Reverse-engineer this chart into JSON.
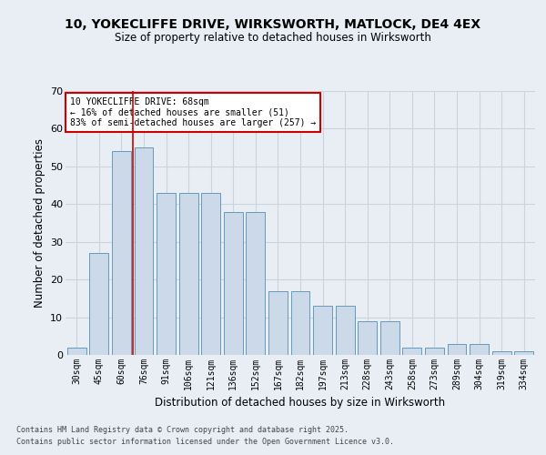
{
  "title_line1": "10, YOKECLIFFE DRIVE, WIRKSWORTH, MATLOCK, DE4 4EX",
  "title_line2": "Size of property relative to detached houses in Wirksworth",
  "xlabel": "Distribution of detached houses by size in Wirksworth",
  "ylabel": "Number of detached properties",
  "categories": [
    "30sqm",
    "45sqm",
    "60sqm",
    "76sqm",
    "91sqm",
    "106sqm",
    "121sqm",
    "136sqm",
    "152sqm",
    "167sqm",
    "182sqm",
    "197sqm",
    "213sqm",
    "228sqm",
    "243sqm",
    "258sqm",
    "273sqm",
    "289sqm",
    "304sqm",
    "319sqm",
    "334sqm"
  ],
  "values": [
    2,
    27,
    54,
    55,
    43,
    43,
    43,
    38,
    38,
    17,
    17,
    13,
    13,
    9,
    9,
    2,
    2,
    3,
    3,
    1,
    1
  ],
  "bar_color": "#ccd9e8",
  "bar_edge_color": "#6699bb",
  "grid_color": "#c8d4e0",
  "background_color": "#e8eef4",
  "annotation_box_text": "10 YOKECLIFFE DRIVE: 68sqm\n← 16% of detached houses are smaller (51)\n83% of semi-detached houses are larger (257) →",
  "annotation_box_color": "#ffffff",
  "annotation_box_edge_color": "#cc0000",
  "vline_color": "#cc0000",
  "ylim": [
    0,
    70
  ],
  "yticks": [
    0,
    10,
    20,
    30,
    40,
    50,
    60,
    70
  ],
  "footer_line1": "Contains HM Land Registry data © Crown copyright and database right 2025.",
  "footer_line2": "Contains public sector information licensed under the Open Government Licence v3.0."
}
